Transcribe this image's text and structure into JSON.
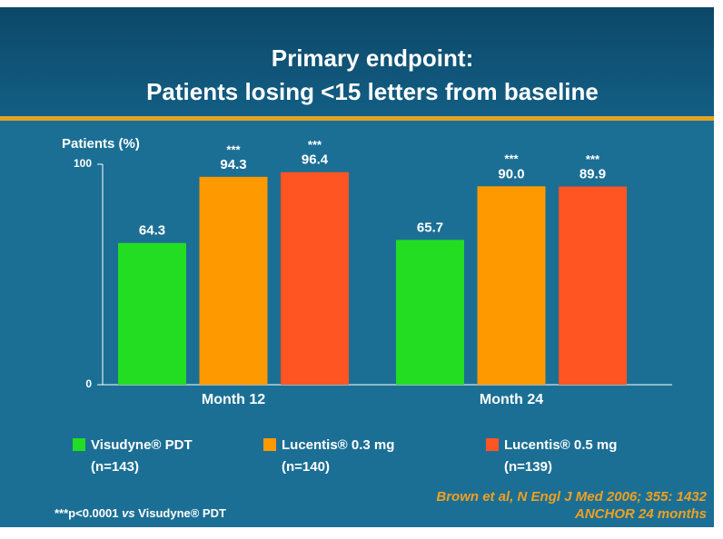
{
  "chart_data": {
    "type": "bar",
    "title": [
      "Primary endpoint:",
      "Patients losing <15 letters from baseline"
    ],
    "y_axis_label": "Patients (%)",
    "categories": [
      "Month 12",
      "Month 24"
    ],
    "series": [
      {
        "name": "Visudyne® PDT",
        "note": "(n=143)",
        "color": "#22dd22",
        "values": [
          64.3,
          65.7
        ],
        "value_labels": [
          "64.3",
          "65.7"
        ]
      },
      {
        "name": "Lucentis® 0.3 mg",
        "note": "(n=140)",
        "color": "#ff9900",
        "values": [
          94.3,
          90.0
        ],
        "value_labels": [
          "94.3",
          "90.0"
        ],
        "annotations": [
          "***",
          "***"
        ]
      },
      {
        "name": "Lucentis® 0.5 mg",
        "note": "(n=139)",
        "color": "#ff5522",
        "values": [
          96.4,
          89.9
        ],
        "value_labels": [
          "96.4",
          "89.9"
        ],
        "annotations": [
          "***",
          "***"
        ]
      }
    ],
    "ylim": [
      0,
      100
    ],
    "yticks": [
      0,
      100
    ],
    "grid": false,
    "footnote": [
      "***p<0.0001 ",
      "vs",
      " Visudyne® PDT"
    ],
    "source": [
      "Brown et al, N Engl J Med 2006; 355: 1432",
      "ANCHOR 24 months"
    ]
  }
}
